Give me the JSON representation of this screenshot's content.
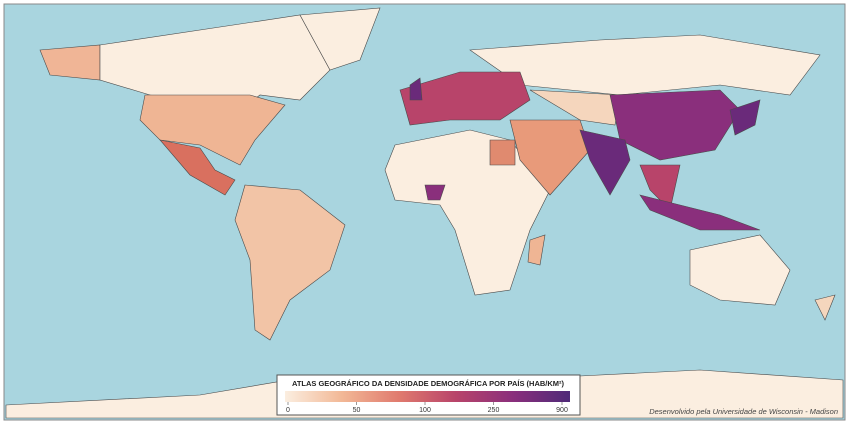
{
  "legend": {
    "title": "ATLAS GEOGRÁFICO DA DENSIDADE DEMOGRÁFICA POR PAÍS (HAB/KM²)",
    "ticks": [
      0,
      50,
      100,
      250,
      900
    ],
    "colors": [
      "#fbeee0",
      "#f2b896",
      "#e07a6e",
      "#b8446a",
      "#8a2f7c",
      "#4f2a78"
    ]
  },
  "credit": "Desenvolvido pela Universidade de Wisconsin - Madison"
}
